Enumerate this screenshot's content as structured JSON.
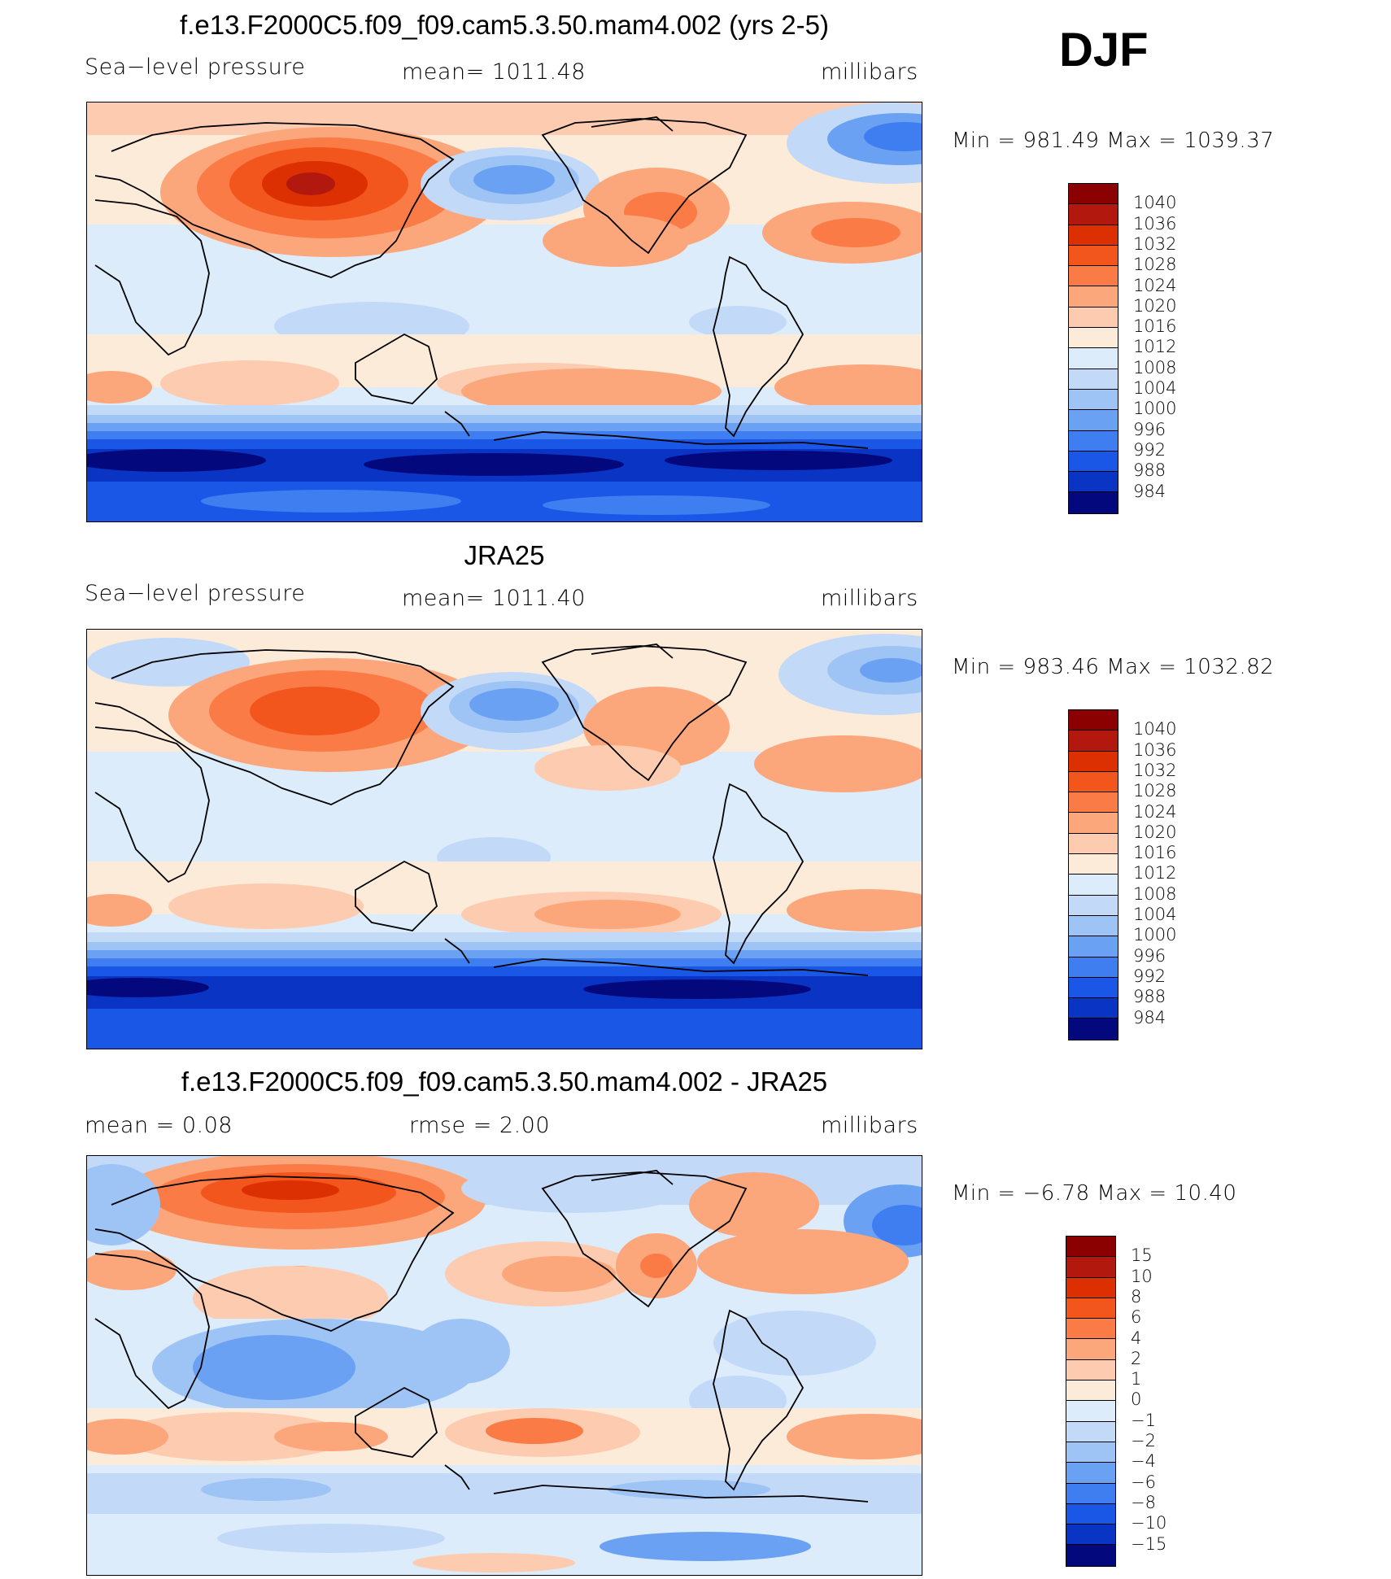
{
  "season": "DJF",
  "panels": [
    {
      "id": "model",
      "title": "f.e13.F2000C5.f09_f09.cam5.3.50.mam4.002 (yrs 2-5)",
      "left_label": "Sea−level pressure",
      "center_label": "mean=  1011.48",
      "units": "millibars",
      "minmax": "Min  =  981.49  Max  =  1039.37"
    },
    {
      "id": "obs",
      "title": "JRA25",
      "left_label": "Sea−level pressure",
      "center_label": "mean=  1011.40",
      "units": "millibars",
      "minmax": "Min  =  983.46  Max  =  1032.82"
    },
    {
      "id": "diff",
      "title": "f.e13.F2000C5.f09_f09.cam5.3.50.mam4.002 - JRA25",
      "left_label": "mean  =      0.08",
      "center_label": "rmse  =      2.00",
      "units": "millibars",
      "minmax": "Min  =   −6.78  Max  =    10.40"
    }
  ],
  "colorbar_abs": {
    "labels": [
      "1040",
      "1036",
      "1032",
      "1028",
      "1024",
      "1020",
      "1016",
      "1012",
      "1008",
      "1004",
      "1000",
      "996",
      "992",
      "988",
      "984"
    ],
    "colors": [
      "#8b0000",
      "#b2180e",
      "#dc2f02",
      "#f2561d",
      "#fa7b45",
      "#fca67c",
      "#fdcbb0",
      "#fdebd9",
      "#dcecfb",
      "#c2daf8",
      "#9ec4f6",
      "#6aa1f2",
      "#3e7ef0",
      "#1b57e6",
      "#0a35c4",
      "#03087c"
    ]
  },
  "colorbar_diff": {
    "labels": [
      "15",
      "10",
      "8",
      "6",
      "4",
      "2",
      "1",
      "0",
      "−1",
      "−2",
      "−4",
      "−6",
      "−8",
      "−10",
      "−15"
    ],
    "colors": [
      "#8b0000",
      "#b2180e",
      "#dc2f02",
      "#f2561d",
      "#fa7b45",
      "#fca67c",
      "#fdcbb0",
      "#fdebd9",
      "#dcecfb",
      "#c2daf8",
      "#9ec4f6",
      "#6aa1f2",
      "#3e7ef0",
      "#1b57e6",
      "#0a35c4",
      "#03087c"
    ]
  }
}
